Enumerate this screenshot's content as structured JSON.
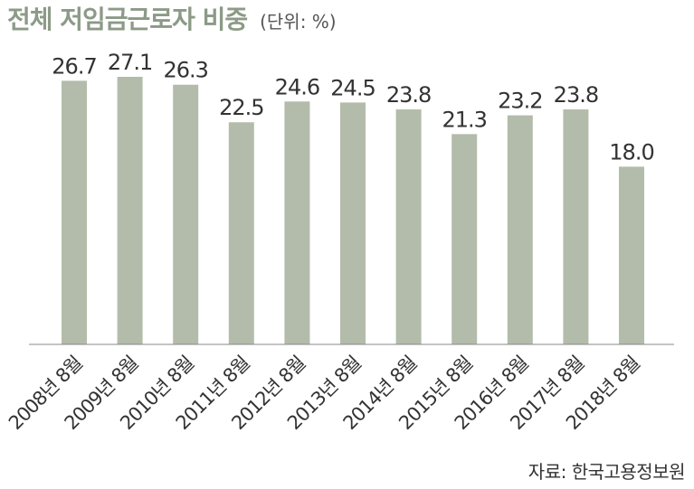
{
  "chart_data": {
    "type": "bar",
    "title": "전체 저임금근로자 비중",
    "subtitle": "(단위: %)",
    "categories": [
      "2008년 8월",
      "2009년 8월",
      "2010년 8월",
      "2011년 8월",
      "2012년 8월",
      "2013년 8월",
      "2014년 8월",
      "2015년 8월",
      "2016년 8월",
      "2017년 8월",
      "2018년 8월"
    ],
    "values": [
      26.7,
      27.1,
      26.3,
      22.5,
      24.6,
      24.5,
      23.8,
      21.3,
      23.2,
      23.8,
      18.0
    ],
    "value_labels": [
      "26.7",
      "27.1",
      "26.3",
      "22.5",
      "24.6",
      "24.5",
      "23.8",
      "21.3",
      "23.2",
      "23.8",
      "18.0"
    ],
    "ylim": [
      0,
      27.1
    ],
    "grid": false,
    "colors": {
      "bar": "#b3bcaa",
      "title": "#8c9a87",
      "text": "#333333",
      "axis": "#888888"
    }
  },
  "source": "자료: 한국고용정보원"
}
